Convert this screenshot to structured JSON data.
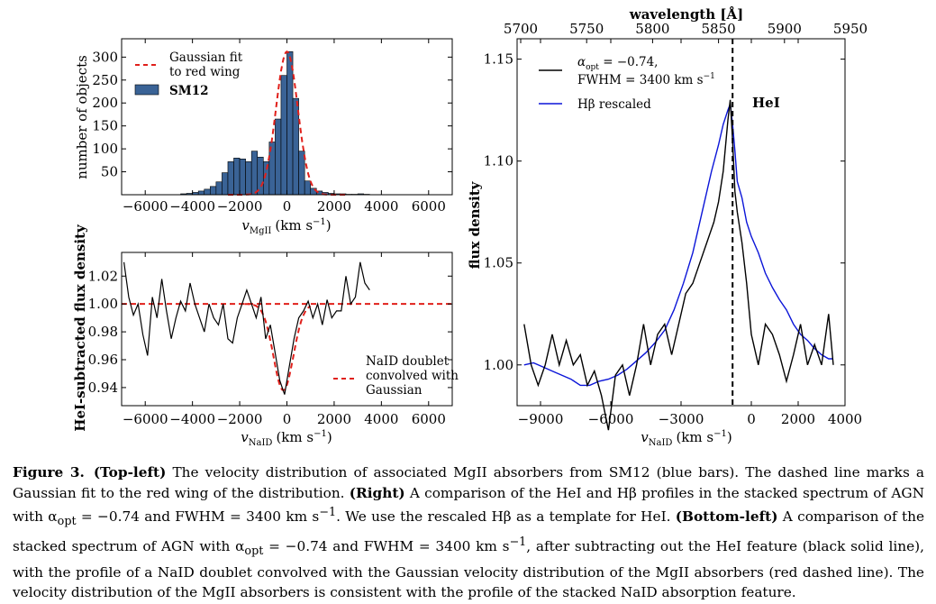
{
  "chart_data": [
    {
      "id": "top-left",
      "type": "bar",
      "xlabel": "v_MgII (km s^-1)",
      "ylabel": "number of objects",
      "xlim": [
        -7000,
        7000
      ],
      "ylim": [
        0,
        340
      ],
      "xticks": [
        -6000,
        -4000,
        -2000,
        0,
        2000,
        4000,
        6000
      ],
      "xtick_labels": [
        "−6000",
        "−4000",
        "−2000",
        "0",
        "2000",
        "4000",
        "6000"
      ],
      "yticks": [
        50,
        100,
        150,
        200,
        250,
        300
      ],
      "ytick_labels": [
        "50",
        "100",
        "150",
        "200",
        "250",
        "300"
      ],
      "bin_width": 250,
      "bin_centers": [
        -4375,
        -4125,
        -3875,
        -3625,
        -3375,
        -3125,
        -2875,
        -2625,
        -2375,
        -2125,
        -1875,
        -1625,
        -1375,
        -1125,
        -875,
        -625,
        -375,
        -125,
        125,
        375,
        625,
        875,
        1125,
        1375,
        1625,
        1875,
        2125,
        2375,
        2625,
        2875,
        3125,
        3375
      ],
      "counts": [
        2,
        3,
        5,
        8,
        12,
        18,
        28,
        48,
        72,
        80,
        78,
        72,
        95,
        82,
        72,
        115,
        165,
        260,
        312,
        210,
        95,
        30,
        14,
        8,
        5,
        3,
        2,
        2,
        1,
        1,
        2,
        1
      ],
      "series": [
        {
          "name": "SM12",
          "style": "bars",
          "color": "#3a6396"
        },
        {
          "name": "Gaussian fit to red wing",
          "style": "dashed",
          "color": "#e0201b",
          "mu": 0,
          "sigma": 460,
          "amp": 312
        }
      ],
      "legend": {
        "position": "top-left",
        "entries": [
          "Gaussian fit",
          "to red wing",
          "SM12"
        ]
      }
    },
    {
      "id": "bottom-left",
      "type": "line",
      "xlabel": "v_NaID (km s^-1)",
      "ylabel": "HeI-subtracted flux density",
      "xlim": [
        -7000,
        7000
      ],
      "ylim": [
        0.927,
        1.037
      ],
      "xticks": [
        -6000,
        -4000,
        -2000,
        0,
        2000,
        4000,
        6000
      ],
      "xtick_labels": [
        "−6000",
        "−4000",
        "−2000",
        "0",
        "2000",
        "4000",
        "6000"
      ],
      "yticks": [
        0.94,
        0.96,
        0.98,
        1.0,
        1.02
      ],
      "ytick_labels": [
        "0.94",
        "0.96",
        "0.98",
        "1.00",
        "1.02"
      ],
      "series": [
        {
          "name": "stacked spectrum",
          "style": "solid",
          "color": "#000000",
          "x": [
            -6900,
            -6700,
            -6500,
            -6300,
            -6100,
            -5900,
            -5700,
            -5500,
            -5300,
            -5100,
            -4900,
            -4700,
            -4500,
            -4300,
            -4100,
            -3900,
            -3700,
            -3500,
            -3300,
            -3100,
            -2900,
            -2700,
            -2500,
            -2300,
            -2100,
            -1900,
            -1700,
            -1500,
            -1300,
            -1100,
            -900,
            -700,
            -500,
            -300,
            -100,
            100,
            300,
            500,
            700,
            900,
            1100,
            1300,
            1500,
            1700,
            1900,
            2100,
            2300,
            2500,
            2700,
            2900,
            3100,
            3300,
            3500
          ],
          "y": [
            1.03,
            1.005,
            0.992,
            1.0,
            0.978,
            0.963,
            1.005,
            0.99,
            1.018,
            0.995,
            0.975,
            0.99,
            1.002,
            0.995,
            1.015,
            1.0,
            0.99,
            0.98,
            1.0,
            0.99,
            0.985,
            1.0,
            0.975,
            0.972,
            0.99,
            1.0,
            1.01,
            1.0,
            0.99,
            1.005,
            0.975,
            0.985,
            0.965,
            0.945,
            0.935,
            0.955,
            0.975,
            0.99,
            0.995,
            1.002,
            0.99,
            1.0,
            0.985,
            1.003,
            0.99,
            0.995,
            0.995,
            1.02,
            1.0,
            1.005,
            1.03,
            1.015,
            1.01
          ]
        },
        {
          "name": "NaID doublet convolved with Gaussian",
          "style": "dashed",
          "color": "#e0201b"
        }
      ],
      "legend": {
        "position": "bottom-right",
        "entries": [
          "NaID doublet",
          "convolved with",
          "Gaussian"
        ]
      }
    },
    {
      "id": "right",
      "type": "line",
      "xlabel": "v_NaID (km s^-1)",
      "ylabel": "flux density",
      "top_xlabel": "wavelength [Å]",
      "xlim": [
        -10000,
        4000
      ],
      "ylim": [
        0.98,
        1.16
      ],
      "xticks": [
        -9000,
        -6000,
        -3000,
        0,
        2000,
        4000
      ],
      "xtick_labels": [
        "−9000",
        "−6000",
        "−3000",
        "0",
        "2000",
        "4000"
      ],
      "yticks": [
        1.0,
        1.05,
        1.1,
        1.15
      ],
      "ytick_labels": [
        "1.00",
        "1.05",
        "1.10",
        "1.15"
      ],
      "top_xticks": [
        5700,
        5750,
        5800,
        5850,
        5900,
        5950
      ],
      "top_xtick_labels": [
        "5700",
        "5750",
        "5800",
        "5850",
        "5900",
        "5950"
      ],
      "annotations": [
        {
          "text": "HeI",
          "x": -800
        }
      ],
      "series": [
        {
          "name": "α_opt = −0.74, FWHM = 3400 km s^-1",
          "style": "solid",
          "color": "#000000",
          "x": [
            -9700,
            -9400,
            -9100,
            -8800,
            -8500,
            -8200,
            -7900,
            -7600,
            -7300,
            -7000,
            -6700,
            -6400,
            -6100,
            -5800,
            -5500,
            -5200,
            -4900,
            -4600,
            -4300,
            -4000,
            -3700,
            -3400,
            -3100,
            -2800,
            -2500,
            -2200,
            -1900,
            -1600,
            -1400,
            -1200,
            -1000,
            -900,
            -800,
            -700,
            -600,
            -400,
            -200,
            0,
            300,
            600,
            900,
            1200,
            1500,
            1800,
            2100,
            2400,
            2700,
            3000,
            3300,
            3500
          ],
          "y": [
            1.02,
            1.0,
            0.99,
            1.0,
            1.015,
            1.0,
            1.012,
            1.0,
            1.005,
            0.99,
            0.997,
            0.985,
            0.968,
            0.995,
            1.0,
            0.985,
            1.0,
            1.02,
            1.0,
            1.015,
            1.02,
            1.005,
            1.02,
            1.035,
            1.04,
            1.05,
            1.06,
            1.07,
            1.08,
            1.095,
            1.12,
            1.13,
            1.11,
            1.085,
            1.075,
            1.06,
            1.04,
            1.015,
            1.0,
            1.02,
            1.015,
            1.005,
            0.992,
            1.005,
            1.02,
            1.0,
            1.01,
            1.0,
            1.025,
            1.0
          ]
        },
        {
          "name": "Hβ rescaled",
          "style": "solid",
          "color": "#0b15d8",
          "x": [
            -9700,
            -9300,
            -8900,
            -8500,
            -8100,
            -7700,
            -7300,
            -6900,
            -6500,
            -6100,
            -5700,
            -5300,
            -4900,
            -4500,
            -4100,
            -3700,
            -3300,
            -2900,
            -2500,
            -2100,
            -1700,
            -1400,
            -1200,
            -1000,
            -900,
            -800,
            -700,
            -600,
            -400,
            -200,
            0,
            300,
            600,
            900,
            1200,
            1500,
            1800,
            2100,
            2400,
            2700,
            3000,
            3300,
            3500
          ],
          "y": [
            1.0,
            1.001,
            0.999,
            0.997,
            0.995,
            0.993,
            0.99,
            0.99,
            0.992,
            0.993,
            0.995,
            0.998,
            1.002,
            1.006,
            1.011,
            1.017,
            1.027,
            1.04,
            1.055,
            1.075,
            1.095,
            1.108,
            1.118,
            1.125,
            1.128,
            1.118,
            1.105,
            1.09,
            1.082,
            1.07,
            1.063,
            1.055,
            1.045,
            1.038,
            1.032,
            1.027,
            1.02,
            1.015,
            1.012,
            1.008,
            1.005,
            1.003,
            1.003
          ]
        }
      ],
      "legend": {
        "position": "top-left",
        "entries": [
          "α_opt = −0.74,",
          "FWHM = 3400 km s^-1",
          "Hβ rescaled"
        ]
      }
    }
  ],
  "labels": {
    "top_left_xlabel": "v",
    "top_left_xlabel_sub": "MgII",
    "top_left_xlabel_unit": "(km s",
    "bottom_left_xlabel": "v",
    "bottom_left_xlabel_sub": "NaID",
    "bottom_left_xlabel_unit": "(km s",
    "right_xlabel": "v",
    "right_xlabel_sub": "NaID",
    "right_xlabel_unit": "(km s",
    "unit_exp": "−1",
    "unit_close": ")",
    "top_left_ylabel": "number of objects",
    "bottom_left_ylabel": "HeI-subtracted flux density",
    "right_ylabel": "flux density",
    "right_top_xlabel": "wavelength [Å]",
    "legend_gauss_1": "Gaussian fit",
    "legend_gauss_2": "to red wing",
    "legend_sm12": "SM12",
    "legend_naid_1": "NaID doublet",
    "legend_naid_2": "convolved with",
    "legend_naid_3": "Gaussian",
    "legend_alpha_a": "α",
    "legend_alpha_sub": "opt",
    "legend_alpha_b": " = −0.74,",
    "legend_fwhm": "FWHM = 3400 km s",
    "legend_fwhm_exp": "−1",
    "legend_hbeta": "Hβ rescaled",
    "hei_label": "HeI"
  },
  "caption": {
    "figure_label": "Figure 3.",
    "p1_b": "(Top-left)",
    "p1": " The velocity distribution of associated MgII absorbers from SM12 (blue bars). The dashed line marks a Gaussian fit to the red wing of the distribution. ",
    "p2_b": "(Right)",
    "p2": " A comparison of the HeI and Hβ profiles in the stacked spectrum of AGN with α",
    "p2_sub": "opt",
    "p2_c": " = −0.74 and FWHM = 3400 km s",
    "p2_exp": "−1",
    "p2_d": ". We use the rescaled Hβ as a template for HeI. ",
    "p3_b": "(Bottom-left)",
    "p3": " A comparison of the stacked spectrum of AGN with α",
    "p3_sub": "opt",
    "p3_c": " = −0.74 and FWHM = 3400 km s",
    "p3_exp": "−1",
    "p3_d": ", after subtracting out the HeI feature (black solid line), with the profile of a NaID doublet convolved with the Gaussian velocity distribution of the MgII absorbers (red dashed line). The velocity distribution of the MgII absorbers is consistent with the profile of the stacked NaID absorption feature."
  }
}
